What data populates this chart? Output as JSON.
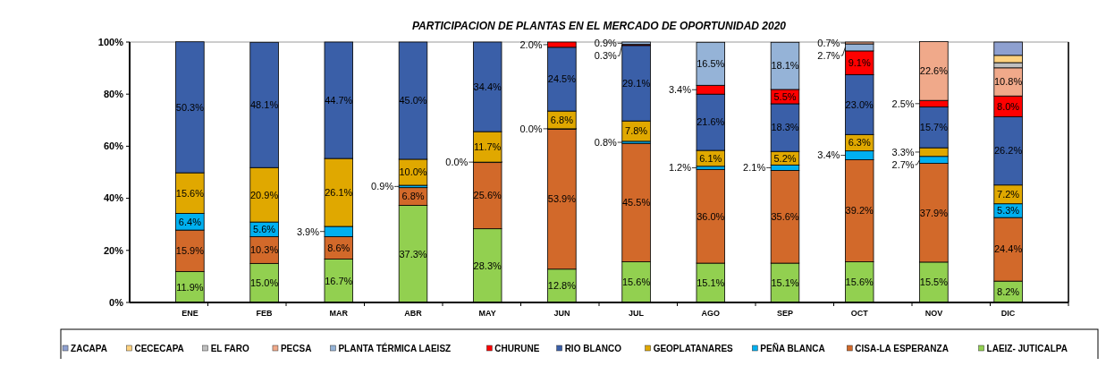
{
  "chart_data": {
    "type": "bar",
    "stacked": true,
    "title": "PARTICIPACION DE PLANTAS EN EL MERCADO DE OPORTUNIDAD 2020",
    "categories": [
      "ENE",
      "FEB",
      "MAR",
      "ABR",
      "MAY",
      "JUN",
      "JUL",
      "AGO",
      "SEP",
      "OCT",
      "NOV",
      "DIC"
    ],
    "ylim": [
      0,
      100
    ],
    "yticks": [
      {
        "value": 0,
        "label": "0%"
      },
      {
        "value": 20,
        "label": "20%"
      },
      {
        "value": 40,
        "label": "40%"
      },
      {
        "value": 60,
        "label": "60%"
      },
      {
        "value": 80,
        "label": "80%"
      },
      {
        "value": 100,
        "label": "100%"
      }
    ],
    "grid": false,
    "legend": "bottom",
    "series": [
      {
        "name": "LAEIZ- JUTICALPA",
        "color": "#92d050",
        "values": [
          11.9,
          15.0,
          16.7,
          37.3,
          28.3,
          12.8,
          15.6,
          15.1,
          15.1,
          15.6,
          15.5,
          8.2
        ],
        "value_labels": [
          "11.9%",
          "15.0%",
          "16.7%",
          "37.3%",
          "28.3%",
          "12.8%",
          "15.6%",
          "15.1%",
          "15.1%",
          "15.6%",
          "15.5%",
          "8.2%"
        ]
      },
      {
        "name": "CISA-LA ESPERANZA",
        "color": "#d2692a",
        "values": [
          15.9,
          10.3,
          8.6,
          6.8,
          25.6,
          53.9,
          45.5,
          36.0,
          35.6,
          39.2,
          37.9,
          24.4
        ],
        "value_labels": [
          "15.9%",
          "10.3%",
          "8.6%",
          "6.8%",
          "25.6%",
          "53.9%",
          "45.5%",
          "36.0%",
          "35.6%",
          "39.2%",
          "37.9%",
          "24.4%"
        ]
      },
      {
        "name": "PEÑA BLANCA",
        "color": "#00b0f0",
        "values": [
          6.4,
          5.6,
          3.9,
          0.9,
          0.0,
          0.0,
          0.8,
          1.2,
          2.1,
          3.4,
          2.7,
          5.3
        ],
        "value_labels": [
          "6.4%",
          "5.6%",
          "3.9%",
          "0.9%",
          "0.0%",
          "0.0%",
          "0.8%",
          "1.2%",
          "2.1%",
          "3.4%",
          "2.7%",
          "5.3%"
        ]
      },
      {
        "name": "GEOPLATANARES",
        "color": "#e0a800",
        "values": [
          15.6,
          20.9,
          26.1,
          10.0,
          11.7,
          6.8,
          7.8,
          6.1,
          5.2,
          6.3,
          3.3,
          7.2
        ],
        "value_labels": [
          "15.6%",
          "20.9%",
          "26.1%",
          "10.0%",
          "11.7%",
          "6.8%",
          "7.8%",
          "6.1%",
          "5.2%",
          "6.3%",
          "3.3%",
          "7.2%"
        ]
      },
      {
        "name": "RIO BLANCO",
        "color": "#3a5fa8",
        "values": [
          50.3,
          48.1,
          44.7,
          45.0,
          34.4,
          24.5,
          29.1,
          21.6,
          18.3,
          23.0,
          15.7,
          26.2
        ],
        "value_labels": [
          "50.3%",
          "48.1%",
          "44.7%",
          "45.0%",
          "34.4%",
          "24.5%",
          "29.1%",
          "21.6%",
          "18.3%",
          "23.0%",
          "15.7%",
          "26.2%"
        ]
      },
      {
        "name": "CHURUNE",
        "color": "#ff0000",
        "values": [
          null,
          null,
          null,
          null,
          null,
          2.0,
          0.3,
          3.4,
          5.5,
          9.1,
          2.5,
          8.0
        ],
        "value_labels": [
          null,
          null,
          null,
          null,
          null,
          "2.0%",
          "0.3%",
          "3.4%",
          "5.5%",
          "9.1%",
          "2.5%",
          "8.0%"
        ]
      },
      {
        "name": "PLANTA TÉRMICA LAEISZ",
        "color": "#95b3d7",
        "values": [
          null,
          null,
          null,
          null,
          null,
          null,
          0.9,
          16.5,
          18.1,
          2.7,
          null,
          null
        ],
        "value_labels": [
          null,
          null,
          null,
          null,
          null,
          null,
          "0.9%",
          "16.5%",
          "18.1%",
          "2.7%",
          null,
          null
        ]
      },
      {
        "name": "PECSA",
        "color": "#f0a98a",
        "values": [
          null,
          null,
          null,
          null,
          null,
          null,
          null,
          null,
          null,
          0.7,
          22.6,
          10.8
        ],
        "value_labels": [
          null,
          null,
          null,
          null,
          null,
          null,
          null,
          null,
          null,
          "0.7%",
          "22.6%",
          "10.8%"
        ]
      },
      {
        "name": "EL FARO",
        "color": "#bfbfbf",
        "values": [
          null,
          null,
          null,
          null,
          null,
          null,
          null,
          null,
          null,
          null,
          null,
          2.0
        ]
      },
      {
        "name": "CECECAPA",
        "color": "#ffd27f",
        "values": [
          null,
          null,
          null,
          null,
          null,
          null,
          null,
          null,
          null,
          null,
          null,
          2.8
        ]
      },
      {
        "name": "ZACAPA",
        "color": "#8ea0d0",
        "values": [
          null,
          null,
          null,
          null,
          null,
          null,
          null,
          null,
          null,
          null,
          null,
          5.1
        ]
      }
    ]
  }
}
